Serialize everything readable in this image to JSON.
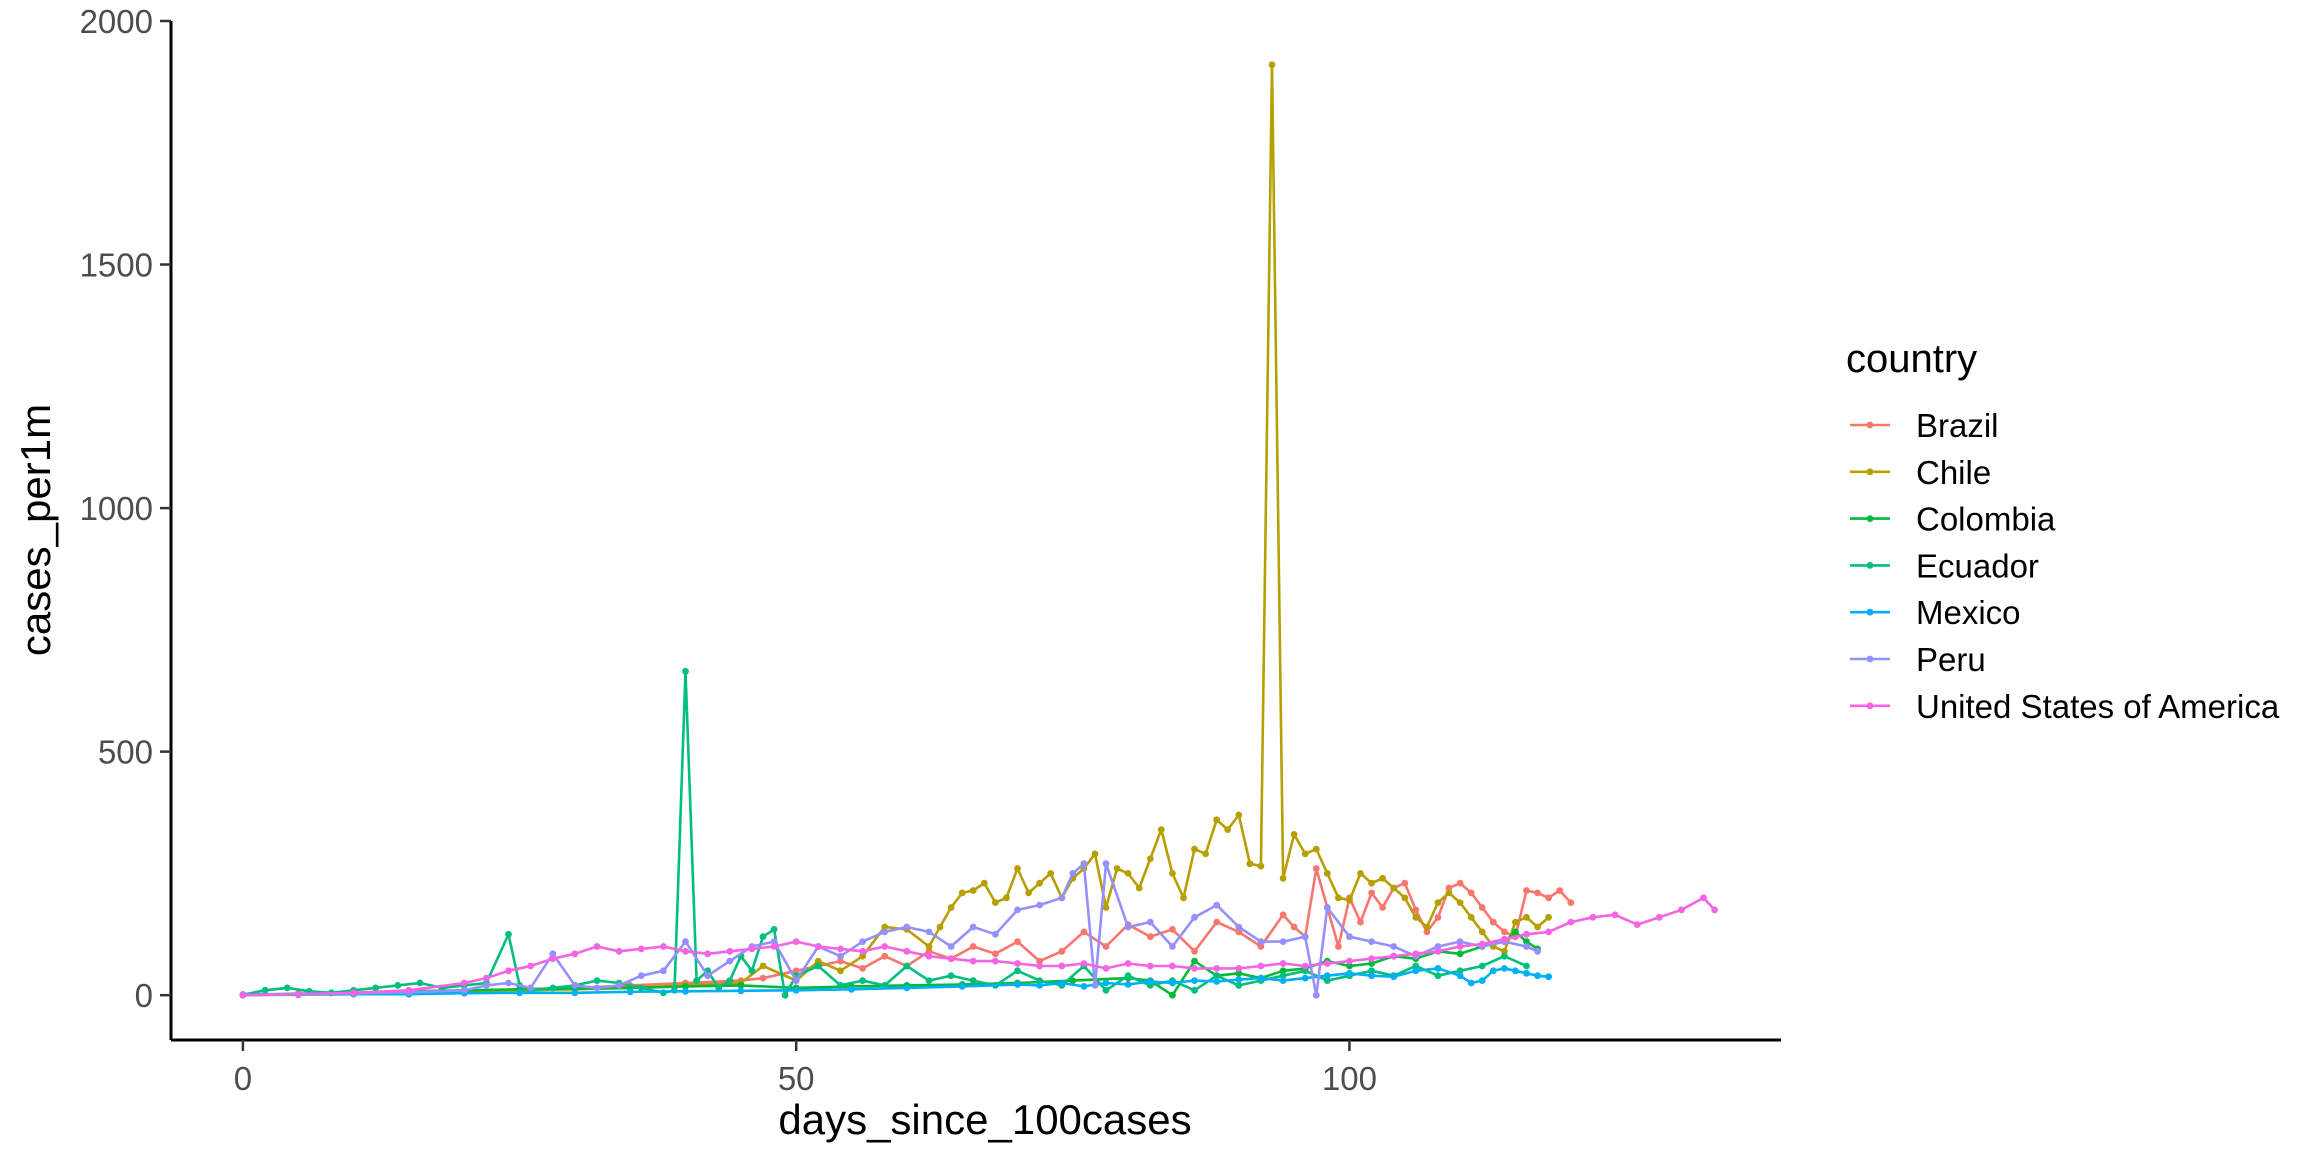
{
  "chart_data": {
    "type": "line",
    "title": "",
    "xlabel": "days_since_100cases",
    "ylabel": "cases_per1m",
    "xlim": [
      -6.5,
      139
    ],
    "ylim": [
      -92,
      2000
    ],
    "x_ticks": [
      0,
      50,
      100
    ],
    "y_ticks": [
      0,
      500,
      1000,
      1500,
      2000
    ],
    "grid": false,
    "legend": {
      "title": "country",
      "position": "right"
    },
    "series": [
      {
        "name": "Brazil",
        "color": "#F8766D",
        "x": [
          0,
          5,
          10,
          15,
          20,
          25,
          30,
          35,
          40,
          45,
          47,
          50,
          52,
          54,
          56,
          58,
          60,
          62,
          64,
          66,
          68,
          70,
          72,
          74,
          76,
          78,
          80,
          82,
          84,
          86,
          88,
          90,
          92,
          94,
          95,
          96,
          97,
          98,
          99,
          100,
          101,
          102,
          103,
          104,
          105,
          106,
          107,
          108,
          109,
          110,
          111,
          112,
          113,
          114,
          115,
          116,
          117,
          118,
          119,
          120
        ],
        "y": [
          1,
          2,
          3,
          5,
          8,
          12,
          15,
          20,
          25,
          30,
          35,
          50,
          60,
          70,
          55,
          80,
          60,
          90,
          75,
          100,
          85,
          110,
          70,
          90,
          130,
          100,
          145,
          120,
          135,
          90,
          150,
          130,
          100,
          165,
          140,
          120,
          260,
          180,
          100,
          200,
          150,
          210,
          180,
          220,
          230,
          175,
          130,
          160,
          220,
          230,
          210,
          180,
          150,
          130,
          120,
          215,
          210,
          200,
          215,
          190
        ]
      },
      {
        "name": "Chile",
        "color": "#B79F00",
        "x": [
          0,
          5,
          10,
          15,
          20,
          25,
          30,
          35,
          40,
          45,
          47,
          50,
          52,
          54,
          56,
          58,
          60,
          62,
          63,
          64,
          65,
          66,
          67,
          68,
          69,
          70,
          71,
          72,
          73,
          74,
          75,
          76,
          77,
          78,
          79,
          80,
          81,
          82,
          83,
          84,
          85,
          86,
          87,
          88,
          89,
          90,
          91,
          92,
          93,
          94,
          95,
          96,
          97,
          98,
          99,
          100,
          101,
          102,
          103,
          104,
          105,
          106,
          107,
          108,
          109,
          110,
          111,
          112,
          113,
          114,
          115,
          116,
          117,
          118
        ],
        "y": [
          1,
          2,
          4,
          5,
          8,
          10,
          12,
          15,
          20,
          25,
          60,
          30,
          70,
          50,
          80,
          140,
          135,
          100,
          140,
          180,
          210,
          215,
          230,
          190,
          200,
          260,
          210,
          230,
          250,
          200,
          240,
          260,
          290,
          180,
          260,
          250,
          220,
          280,
          340,
          250,
          200,
          300,
          290,
          360,
          340,
          370,
          270,
          265,
          1910,
          240,
          330,
          290,
          300,
          250,
          200,
          195,
          250,
          230,
          240,
          220,
          200,
          160,
          140,
          190,
          210,
          190,
          160,
          130,
          100,
          90,
          150,
          160,
          140,
          160
        ]
      },
      {
        "name": "Colombia",
        "color": "#00BA38",
        "x": [
          0,
          5,
          10,
          15,
          20,
          25,
          30,
          35,
          40,
          45,
          50,
          55,
          60,
          65,
          70,
          75,
          80,
          82,
          84,
          86,
          88,
          90,
          92,
          94,
          96,
          98,
          100,
          102,
          104,
          106,
          108,
          110,
          112,
          114,
          115,
          116,
          117
        ],
        "y": [
          1,
          3,
          5,
          8,
          10,
          12,
          14,
          15,
          18,
          20,
          15,
          18,
          20,
          22,
          25,
          30,
          35,
          30,
          0,
          70,
          40,
          45,
          35,
          50,
          55,
          70,
          60,
          65,
          80,
          75,
          90,
          85,
          100,
          110,
          130,
          110,
          95
        ]
      },
      {
        "name": "Ecuador",
        "color": "#00BF7D",
        "x": [
          0,
          2,
          4,
          6,
          8,
          10,
          12,
          14,
          16,
          18,
          20,
          22,
          24,
          25,
          26,
          28,
          30,
          32,
          34,
          36,
          38,
          39,
          40,
          41,
          42,
          43,
          44,
          45,
          46,
          47,
          48,
          49,
          50,
          52,
          54,
          56,
          58,
          60,
          62,
          64,
          66,
          68,
          70,
          72,
          74,
          76,
          78,
          80,
          82,
          84,
          86,
          88,
          90,
          92,
          94,
          96,
          98,
          100,
          102,
          104,
          106,
          108,
          110,
          112,
          114,
          116
        ],
        "y": [
          1,
          10,
          15,
          8,
          5,
          10,
          15,
          20,
          25,
          15,
          20,
          25,
          125,
          20,
          10,
          15,
          20,
          30,
          25,
          15,
          5,
          10,
          665,
          30,
          50,
          15,
          30,
          80,
          50,
          120,
          135,
          0,
          40,
          60,
          20,
          30,
          20,
          60,
          30,
          40,
          30,
          20,
          50,
          30,
          20,
          60,
          10,
          40,
          20,
          30,
          10,
          40,
          20,
          30,
          40,
          50,
          30,
          40,
          50,
          40,
          60,
          40,
          50,
          60,
          80,
          60
        ]
      },
      {
        "name": "Mexico",
        "color": "#00B0F6",
        "x": [
          0,
          5,
          10,
          15,
          20,
          25,
          30,
          35,
          40,
          45,
          50,
          55,
          60,
          65,
          70,
          72,
          74,
          76,
          78,
          80,
          82,
          84,
          86,
          88,
          90,
          92,
          94,
          96,
          98,
          100,
          102,
          104,
          106,
          108,
          110,
          111,
          112,
          113,
          114,
          115,
          116,
          117,
          118
        ],
        "y": [
          0,
          1,
          2,
          2,
          4,
          5,
          5,
          7,
          8,
          9,
          10,
          12,
          15,
          18,
          22,
          20,
          25,
          18,
          25,
          22,
          28,
          25,
          30,
          28,
          32,
          35,
          30,
          35,
          40,
          45,
          40,
          38,
          50,
          55,
          40,
          25,
          30,
          50,
          55,
          50,
          45,
          40,
          38
        ]
      },
      {
        "name": "Peru",
        "color": "#9590FF",
        "x": [
          0,
          5,
          10,
          15,
          20,
          22,
          24,
          26,
          28,
          30,
          32,
          34,
          36,
          38,
          40,
          42,
          44,
          46,
          48,
          50,
          52,
          54,
          56,
          58,
          60,
          62,
          64,
          66,
          68,
          70,
          72,
          74,
          75,
          76,
          77,
          78,
          80,
          82,
          84,
          86,
          88,
          90,
          92,
          94,
          96,
          97,
          98,
          100,
          102,
          104,
          106,
          108,
          110,
          112,
          114,
          116,
          117
        ],
        "y": [
          1,
          2,
          4,
          6,
          10,
          20,
          25,
          15,
          85,
          20,
          15,
          20,
          40,
          50,
          110,
          40,
          70,
          100,
          110,
          30,
          100,
          80,
          110,
          130,
          140,
          130,
          100,
          140,
          125,
          175,
          185,
          200,
          250,
          270,
          20,
          270,
          140,
          150,
          100,
          160,
          185,
          140,
          110,
          110,
          120,
          0,
          180,
          120,
          110,
          100,
          80,
          100,
          110,
          100,
          110,
          100,
          90
        ]
      },
      {
        "name": "United States of America",
        "color": "#F564E3",
        "x": [
          0,
          5,
          10,
          15,
          20,
          22,
          24,
          26,
          28,
          30,
          32,
          34,
          36,
          38,
          40,
          42,
          44,
          46,
          48,
          50,
          52,
          54,
          56,
          58,
          60,
          62,
          64,
          66,
          68,
          70,
          72,
          74,
          76,
          78,
          80,
          82,
          84,
          86,
          88,
          90,
          92,
          94,
          96,
          98,
          100,
          102,
          104,
          106,
          108,
          110,
          112,
          114,
          116,
          118,
          120,
          122,
          124,
          126,
          128,
          130,
          132,
          133
        ],
        "y": [
          0,
          2,
          5,
          10,
          25,
          35,
          50,
          60,
          75,
          85,
          100,
          90,
          95,
          100,
          90,
          85,
          90,
          95,
          100,
          110,
          100,
          95,
          90,
          100,
          90,
          80,
          75,
          70,
          70,
          65,
          60,
          60,
          65,
          55,
          65,
          60,
          60,
          55,
          55,
          55,
          60,
          65,
          60,
          65,
          70,
          75,
          80,
          85,
          90,
          100,
          105,
          115,
          125,
          130,
          150,
          160,
          165,
          145,
          160,
          175,
          200,
          175
        ]
      }
    ]
  }
}
